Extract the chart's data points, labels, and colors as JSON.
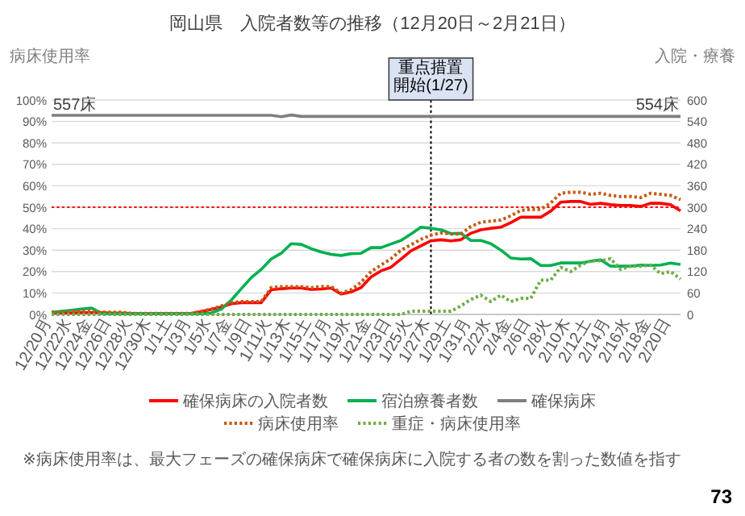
{
  "chart_data": {
    "type": "line",
    "title": "岡山県　入院者数等の推移（12月20日～2月21日）",
    "ylabel": "病床使用率",
    "y2label": "入院・療養",
    "categories": [
      "12/20月",
      null,
      "12/22水",
      null,
      "12/24金",
      null,
      "12/26日",
      null,
      "12/28火",
      null,
      "12/30木",
      null,
      "1/1土",
      null,
      "1/3月",
      null,
      "1/5水",
      null,
      "1/7金",
      null,
      "1/9日",
      null,
      "1/11火",
      null,
      "1/13木",
      null,
      "1/15土",
      null,
      "1/17月",
      null,
      "1/19水",
      null,
      "1/21金",
      null,
      "1/23日",
      null,
      "1/25火",
      null,
      "1/27木",
      null,
      "1/29土",
      null,
      "1/31月",
      null,
      "2/2水",
      null,
      "2/4金",
      null,
      "2/6日",
      null,
      "2/8火",
      null,
      "2/10木",
      null,
      "2/12土",
      null,
      "2/14月",
      null,
      "2/16水",
      null,
      "2/18金",
      null,
      "2/20日",
      null
    ],
    "series": [
      {
        "name": "確保病床の入院者数",
        "color": "#ff0000",
        "axis": "y2",
        "line_style": "solid",
        "values": [
          4,
          4,
          4,
          5,
          5,
          5,
          4,
          4,
          3,
          2,
          2,
          2,
          2,
          2,
          3,
          8,
          14,
          21,
          30,
          33,
          33,
          33,
          69,
          72,
          74,
          74,
          70,
          71,
          74,
          57,
          63,
          75,
          105,
          122,
          132,
          155,
          178,
          192,
          206,
          209,
          206,
          209,
          227,
          237,
          241,
          244,
          257,
          272,
          272,
          272,
          289,
          314,
          316,
          316,
          308,
          311,
          307,
          305,
          305,
          302,
          311,
          311,
          307,
          290
        ]
      },
      {
        "name": "宿泊療養者数",
        "color": "#00b050",
        "axis": "y2",
        "line_style": "solid",
        "values": [
          6,
          9,
          12,
          15,
          18,
          3,
          2,
          2,
          2,
          2,
          2,
          2,
          2,
          2,
          2,
          2,
          4,
          15,
          40,
          72,
          103,
          126,
          155,
          171,
          198,
          196,
          184,
          175,
          168,
          165,
          170,
          171,
          187,
          187,
          197,
          207,
          225,
          244,
          241,
          237,
          226,
          227,
          207,
          207,
          198,
          180,
          158,
          155,
          156,
          137,
          137,
          144,
          144,
          144,
          149,
          153,
          135,
          135,
          135,
          138,
          137,
          138,
          144,
          140
        ]
      },
      {
        "name": "確保病床",
        "color": "#7f7f7f",
        "axis": "y2",
        "line_style": "solid",
        "values": [
          557,
          557,
          557,
          557,
          557,
          557,
          557,
          557,
          557,
          557,
          557,
          557,
          557,
          557,
          557,
          557,
          557,
          557,
          557,
          557,
          557,
          557,
          557,
          553,
          558,
          554,
          554,
          554,
          554,
          554,
          554,
          554,
          554,
          554,
          554,
          554,
          554,
          554,
          554,
          554,
          554,
          554,
          554,
          554,
          554,
          554,
          554,
          554,
          554,
          554,
          554,
          554,
          554,
          554,
          554,
          554,
          554,
          554,
          554,
          554,
          554,
          554,
          554,
          554
        ]
      },
      {
        "name": "病床使用率",
        "color": "#c55a11",
        "axis": "y",
        "line_style": "dotted",
        "values": [
          1,
          1,
          1.5,
          1.5,
          1.5,
          1,
          1,
          1,
          0.5,
          0.5,
          0.5,
          0.5,
          0.5,
          0.5,
          0.5,
          1.5,
          2.5,
          4,
          5.5,
          6,
          6,
          6,
          12.5,
          13,
          13,
          13,
          12.5,
          13,
          13,
          10,
          11.5,
          15,
          20,
          23,
          26,
          30,
          32.5,
          35,
          37,
          38,
          37.5,
          37.5,
          41,
          43,
          43.5,
          44,
          46,
          48.5,
          49,
          49,
          52,
          56.5,
          57,
          57,
          56,
          56.5,
          55.5,
          55,
          55,
          54.5,
          56.5,
          56,
          55.5,
          53.5
        ]
      },
      {
        "name": "重症・病床使用率",
        "color": "#70ad47",
        "axis": "y",
        "line_style": "dotted",
        "values": [
          0,
          0,
          0,
          0,
          0,
          0,
          0,
          0,
          0,
          0,
          0,
          0,
          0,
          0,
          0,
          0,
          0,
          0,
          0,
          0,
          0,
          0,
          0,
          0,
          0,
          0,
          0,
          0,
          0,
          0,
          0,
          0,
          0,
          0,
          0,
          0,
          1.5,
          1.5,
          1.5,
          1.5,
          1.5,
          4,
          7,
          9,
          6,
          9,
          6,
          7.5,
          7.5,
          16,
          16,
          22,
          20,
          23,
          25,
          25,
          26,
          21,
          22.5,
          22.5,
          23,
          19,
          20,
          16.5
        ]
      }
    ],
    "ylim": [
      0,
      100
    ],
    "yticks": [
      {
        "value": 0,
        "label": "0%"
      },
      {
        "value": 10,
        "label": "10%"
      },
      {
        "value": 20,
        "label": "20%"
      },
      {
        "value": 30,
        "label": "30%"
      },
      {
        "value": 40,
        "label": "40%"
      },
      {
        "value": 50,
        "label": "50%"
      },
      {
        "value": 60,
        "label": "60%"
      },
      {
        "value": 70,
        "label": "70%"
      },
      {
        "value": 80,
        "label": "80%"
      },
      {
        "value": 90,
        "label": "90%"
      },
      {
        "value": 100,
        "label": "100%"
      }
    ],
    "y2lim": [
      0,
      600
    ],
    "y2ticks": [
      0,
      60,
      120,
      180,
      240,
      300,
      360,
      420,
      480,
      540,
      600
    ],
    "ref_lines": [
      {
        "axis": "x",
        "value": "1/27木",
        "label": "重点措置開始(1/27)",
        "color": "#000000",
        "line_style": "dotted"
      },
      {
        "axis": "y",
        "value": 50,
        "color": "#ff0000",
        "line_style": "dotted"
      }
    ],
    "annotations": [
      "557床",
      "554床",
      "※病床使用率は、最大フェーズの確保病床で確保病床に入院する者の数を割った数値を指す",
      "73"
    ],
    "grid": "y",
    "legend": "bottom"
  }
}
